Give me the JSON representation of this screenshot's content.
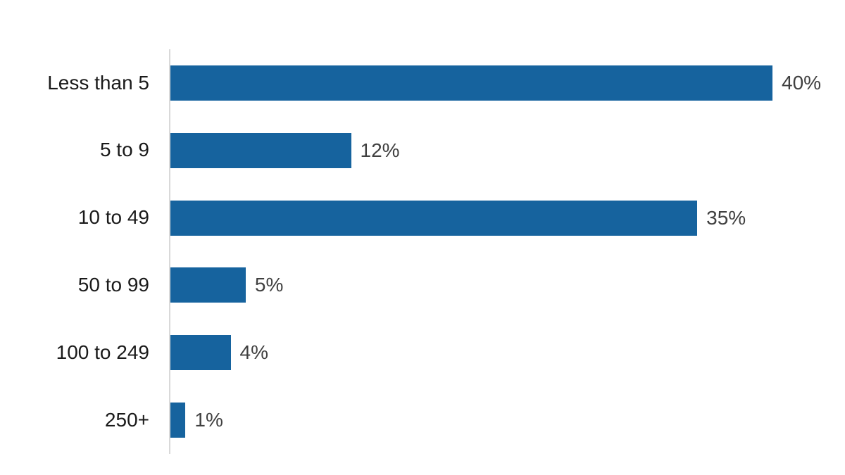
{
  "chart_data": {
    "type": "bar",
    "orientation": "horizontal",
    "title": "",
    "xlabel": "",
    "ylabel": "",
    "categories": [
      "Less than 5",
      "5 to 9",
      "10 to 49",
      "50 to 99",
      "100 to 249",
      "250+"
    ],
    "values": [
      40,
      12,
      35,
      5,
      4,
      1
    ],
    "value_labels": [
      "40%",
      "12%",
      "35%",
      "5%",
      "4%",
      "1%"
    ],
    "unit": "%",
    "xlim": [
      0,
      40
    ],
    "grid": false,
    "legend": false,
    "colors": {
      "bar": "#16639E",
      "axis_line": "#D9D9D9",
      "category_label": "#1A1A1A",
      "value_label": "#404040",
      "background": "#FFFFFF"
    }
  }
}
